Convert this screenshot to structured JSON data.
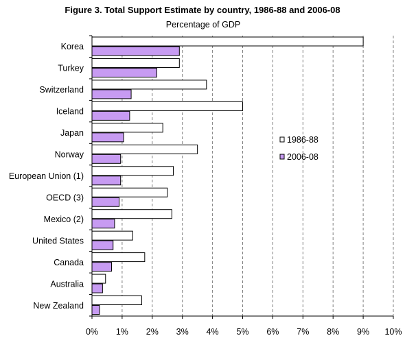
{
  "chart_data": {
    "type": "bar",
    "orientation": "horizontal",
    "title": "Figure 3. Total Support Estimate by country, 1986-88 and 2006-08",
    "subtitle": "Percentage of GDP",
    "categories": [
      "Korea",
      "Turkey",
      "Switzerland",
      "Iceland",
      "Japan",
      "Norway",
      "European Union (1)",
      "OECD  (3)",
      "Mexico (2)",
      "United States",
      "Canada",
      "Australia",
      "New Zealand"
    ],
    "series": [
      {
        "name": "1986-88",
        "color": "#ffffff",
        "values": [
          9.0,
          2.9,
          3.8,
          5.0,
          2.35,
          3.5,
          2.7,
          2.5,
          2.65,
          1.35,
          1.75,
          0.45,
          1.65
        ]
      },
      {
        "name": "2006-08",
        "color": "#c79bf2",
        "values": [
          2.9,
          2.15,
          1.3,
          1.25,
          1.05,
          0.95,
          0.95,
          0.9,
          0.75,
          0.7,
          0.65,
          0.35,
          0.25
        ]
      }
    ],
    "xlim": [
      0,
      10
    ],
    "xticks": [
      "0%",
      "1%",
      "2%",
      "3%",
      "4%",
      "5%",
      "6%",
      "7%",
      "8%",
      "9%",
      "10%"
    ],
    "grid": "vertical dashed",
    "legend_position": "right"
  }
}
